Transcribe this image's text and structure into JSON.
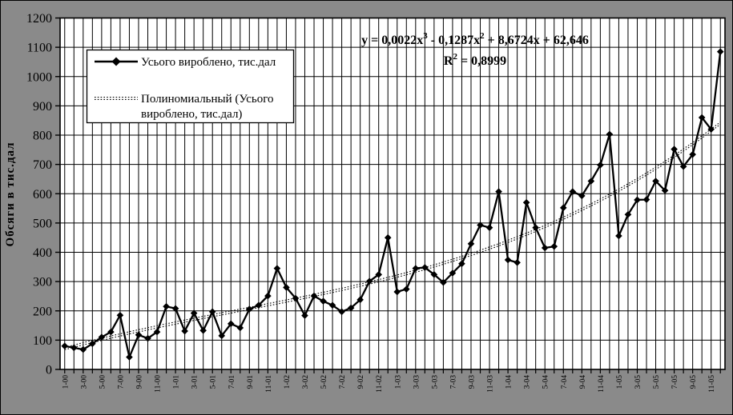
{
  "colors": {
    "background": "#8a8a8a",
    "plot_background": "#ffffff",
    "gridline": "#000000",
    "series": "#000000",
    "trendline": "#000000",
    "legend_background": "#ffffff",
    "border": "#000000"
  },
  "y_axis": {
    "title": "Обсяги в тис.дал",
    "min": 0,
    "max": 1200,
    "tick_step": 100
  },
  "x_axis": {
    "tick_labels_shown": [
      "1-00",
      "3-00",
      "5-00",
      "7-00",
      "9-00",
      "11-00",
      "1-01",
      "3-01",
      "5-01",
      "7-01",
      "9-01",
      "11-01",
      "1-02",
      "3-02",
      "5-02",
      "7-02",
      "9-02",
      "11-02",
      "1-03",
      "3-03",
      "5-03",
      "7-03",
      "9-03",
      "11-03",
      "1-04",
      "3-04",
      "5-04",
      "7-04",
      "9-04",
      "11-04",
      "1-05",
      "3-05",
      "5-05",
      "7-05",
      "9-05",
      "11-05"
    ]
  },
  "legend": {
    "items": [
      {
        "label_lines": [
          "Усього вироблено, тис.дал"
        ],
        "sample": "line-diamond"
      },
      {
        "label_lines": [
          "Полиномиальный (Усього",
          "вироблено, тис.дал)"
        ],
        "sample": "dotted-line"
      }
    ]
  },
  "equation": {
    "line1_segments": [
      {
        "t": "y = 0,0022x"
      },
      {
        "t": "3",
        "sup": true
      },
      {
        "t": " - 0,1287x"
      },
      {
        "t": "2",
        "sup": true
      },
      {
        "t": " + 8,6724x + 62,646"
      }
    ],
    "line2_segments": [
      {
        "t": "R"
      },
      {
        "t": "2",
        "sup": true
      },
      {
        "t": " = 0,8999"
      }
    ]
  },
  "chart_data": {
    "type": "line",
    "title": "",
    "xlabel": "",
    "ylabel": "Обсяги в тис.дал",
    "ylim": [
      0,
      1200
    ],
    "ytick_step": 100,
    "grid": "both",
    "legend_position": "upper-left-inside",
    "categories": [
      "1-00",
      "2-00",
      "3-00",
      "4-00",
      "5-00",
      "6-00",
      "7-00",
      "8-00",
      "9-00",
      "10-00",
      "11-00",
      "12-00",
      "1-01",
      "2-01",
      "3-01",
      "4-01",
      "5-01",
      "6-01",
      "7-01",
      "8-01",
      "9-01",
      "10-01",
      "11-01",
      "12-01",
      "1-02",
      "2-02",
      "3-02",
      "4-02",
      "5-02",
      "6-02",
      "7-02",
      "8-02",
      "9-02",
      "10-02",
      "11-02",
      "12-02",
      "1-03",
      "2-03",
      "3-03",
      "4-03",
      "5-03",
      "6-03",
      "7-03",
      "8-03",
      "9-03",
      "10-03",
      "11-03",
      "12-03",
      "1-04",
      "2-04",
      "3-04",
      "4-04",
      "5-04",
      "6-04",
      "7-04",
      "8-04",
      "9-04",
      "10-04",
      "11-04",
      "12-04",
      "1-05",
      "2-05",
      "3-05",
      "4-05",
      "5-05",
      "6-05",
      "7-05",
      "8-05",
      "9-05",
      "10-05",
      "11-05",
      "12-05"
    ],
    "series": [
      {
        "name": "Усього вироблено, тис.дал",
        "marker": "diamond",
        "color": "#000000",
        "values": [
          80,
          74,
          68,
          88,
          110,
          128,
          185,
          42,
          118,
          106,
          128,
          215,
          208,
          131,
          192,
          133,
          197,
          115,
          156,
          142,
          206,
          219,
          251,
          345,
          280,
          243,
          184,
          251,
          233,
          219,
          197,
          210,
          238,
          301,
          324,
          450,
          265,
          274,
          345,
          348,
          324,
          297,
          329,
          361,
          429,
          493,
          484,
          607,
          374,
          365,
          570,
          484,
          415,
          420,
          552,
          607,
          593,
          643,
          698,
          803,
          456,
          529,
          579,
          580,
          643,
          611,
          752,
          693,
          734,
          860,
          820,
          1085
        ]
      }
    ],
    "trendline": {
      "name": "Полиномиальный (Усього вироблено, тис.дал)",
      "type": "polynomial",
      "degree": 3,
      "coefficients": {
        "a3": 0.0022,
        "a2": -0.1287,
        "a1": 8.6724,
        "a0": 62.646
      },
      "equation_text": "y = 0,0022x3 - 0,1287x2 + 8,6724x + 62,646",
      "r_squared": 0.8999,
      "r_squared_text": "R2 = 0,8999",
      "style": "dotted"
    }
  }
}
